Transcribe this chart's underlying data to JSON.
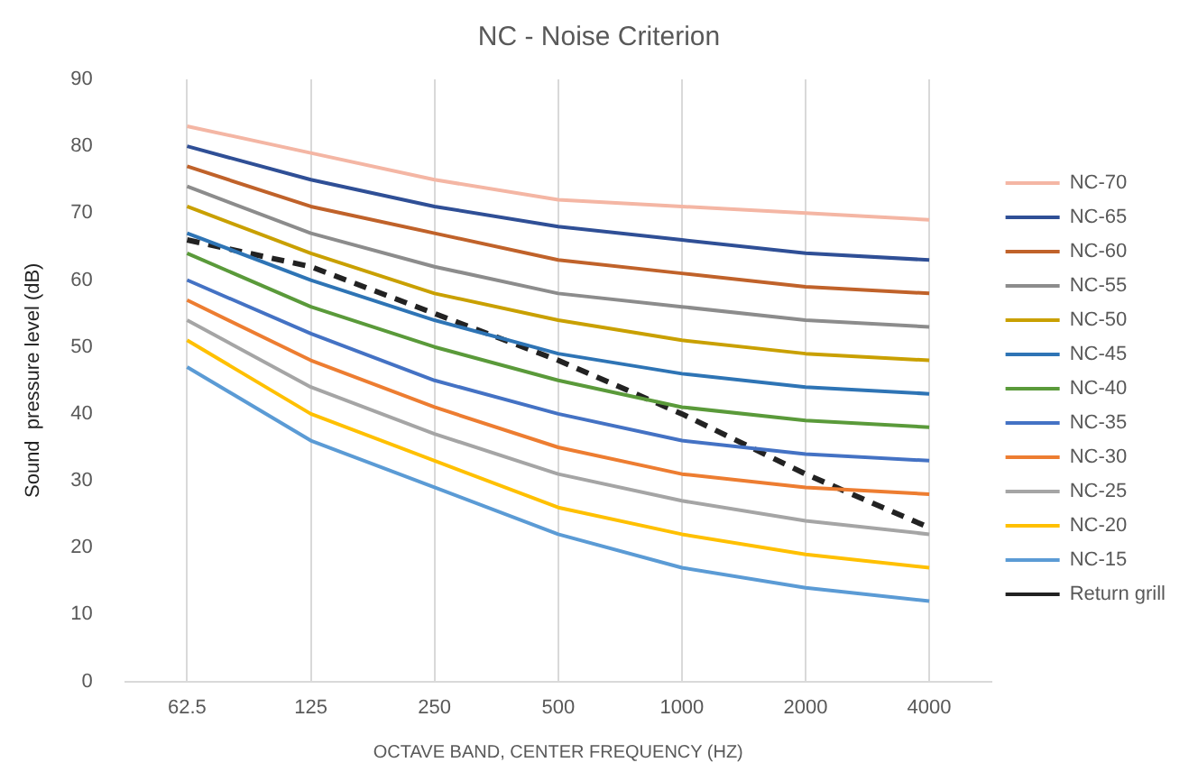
{
  "chart_data": {
    "type": "line",
    "title": "NC - Noise Criterion",
    "xlabel": "OCTAVE BAND, CENTER FREQUENCY (HZ)",
    "ylabel": "Sound  pressure level (dB)",
    "categories": [
      "62.5",
      "125",
      "250",
      "500",
      "1000",
      "2000",
      "4000"
    ],
    "ylim": [
      0,
      90
    ],
    "yticks": [
      0,
      10,
      20,
      30,
      40,
      50,
      60,
      70,
      80,
      90
    ],
    "grid": "x",
    "legend": "right",
    "marker": "none",
    "line_style": "solid",
    "series": [
      {
        "name": "NC-70",
        "color": "#f4b6a4",
        "values": [
          83,
          79,
          75,
          72,
          71,
          70,
          69
        ]
      },
      {
        "name": "NC-65",
        "color": "#2f4f96",
        "values": [
          80,
          75,
          71,
          68,
          66,
          64,
          63
        ]
      },
      {
        "name": "NC-60",
        "color": "#c0622a",
        "values": [
          77,
          71,
          67,
          63,
          61,
          59,
          58
        ]
      },
      {
        "name": "NC-55",
        "color": "#8c8c8c",
        "values": [
          74,
          67,
          62,
          58,
          56,
          54,
          53
        ]
      },
      {
        "name": "NC-50",
        "color": "#c9a000",
        "values": [
          71,
          64,
          58,
          54,
          51,
          49,
          48
        ]
      },
      {
        "name": "NC-45",
        "color": "#2e74b5",
        "values": [
          67,
          60,
          54,
          49,
          46,
          44,
          43
        ]
      },
      {
        "name": "NC-40",
        "color": "#5a9a3a",
        "values": [
          64,
          56,
          50,
          45,
          41,
          39,
          38
        ]
      },
      {
        "name": "NC-35",
        "color": "#4472c4",
        "values": [
          60,
          52,
          45,
          40,
          36,
          34,
          33
        ]
      },
      {
        "name": "NC-30",
        "color": "#ed7d31",
        "values": [
          57,
          48,
          41,
          35,
          31,
          29,
          28
        ]
      },
      {
        "name": "NC-25",
        "color": "#a5a5a5",
        "values": [
          54,
          44,
          37,
          31,
          27,
          24,
          22
        ]
      },
      {
        "name": "NC-20",
        "color": "#ffc000",
        "values": [
          51,
          40,
          33,
          26,
          22,
          19,
          17
        ]
      },
      {
        "name": "NC-15",
        "color": "#5b9bd5",
        "values": [
          47,
          36,
          29,
          22,
          17,
          14,
          12
        ]
      },
      {
        "name": "Return grill",
        "color": "#222222",
        "line_style": "dashed",
        "values": [
          66,
          62,
          55,
          48,
          40,
          31,
          23
        ]
      }
    ]
  }
}
